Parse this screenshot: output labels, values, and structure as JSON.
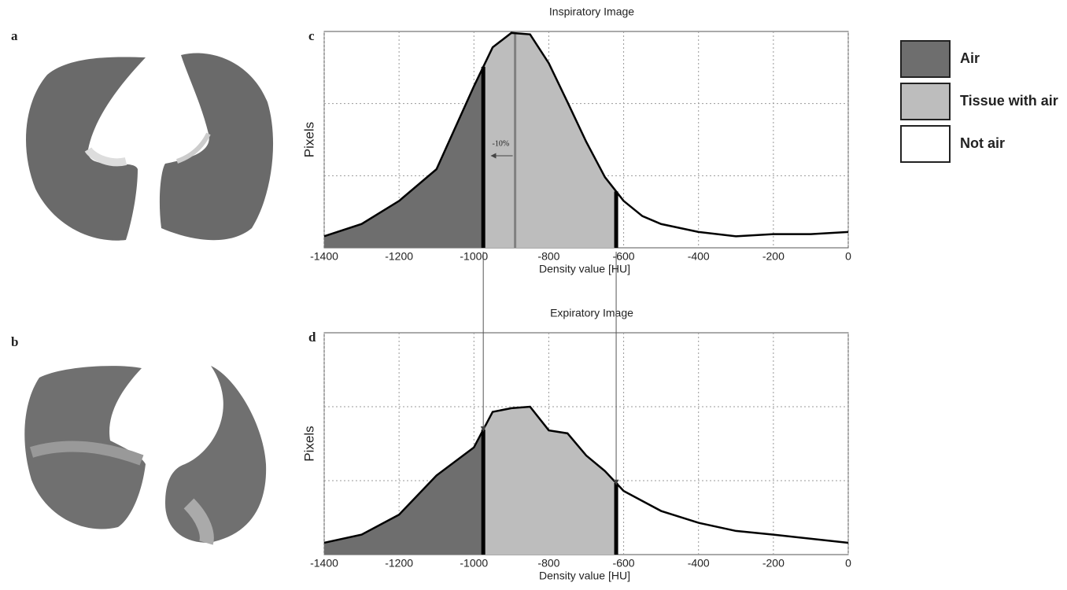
{
  "panels": [
    "a",
    "b"
  ],
  "legend": [
    {
      "label": "Air",
      "color": "#6e6e6e"
    },
    {
      "label": "Tissue with air",
      "color": "#bdbdbd"
    },
    {
      "label": "Not air",
      "color": "#ffffff"
    }
  ],
  "chart_data": [
    {
      "type": "area",
      "panel": "c",
      "title": "Inspiratory Image",
      "xlabel": "Density value [HU]",
      "ylabel": "Pixels",
      "x": [
        -1400,
        -1300,
        -1200,
        -1100,
        -1000,
        -950,
        -900,
        -850,
        -800,
        -750,
        -700,
        -650,
        -600,
        -550,
        -500,
        -400,
        -300,
        -200,
        -100,
        0
      ],
      "values": [
        0.16,
        0.33,
        0.65,
        1.09,
        2.24,
        2.78,
        2.98,
        2.96,
        2.56,
        2.02,
        1.47,
        0.98,
        0.65,
        0.44,
        0.33,
        0.22,
        0.16,
        0.19,
        0.19,
        0.22
      ],
      "xlim": [
        -1400,
        0
      ],
      "xticks": [
        -1400,
        -1200,
        -1000,
        -800,
        -600,
        -400,
        -200,
        0
      ],
      "ylim": [
        0,
        3
      ],
      "yticks": [
        1,
        2
      ],
      "grid": true,
      "thresholds": [
        -975,
        -620
      ],
      "reference_line": -890,
      "annotation": "-10%"
    },
    {
      "type": "area",
      "panel": "d",
      "title": "Expiratory Image",
      "xlabel": "Density value [HU]",
      "ylabel": "Pixels",
      "x": [
        -1400,
        -1300,
        -1200,
        -1100,
        -1000,
        -950,
        -900,
        -850,
        -800,
        -750,
        -700,
        -650,
        -600,
        -500,
        -400,
        -300,
        -200,
        0
      ],
      "values": [
        0.16,
        0.27,
        0.54,
        1.07,
        1.45,
        1.93,
        1.98,
        2.0,
        1.68,
        1.64,
        1.34,
        1.13,
        0.86,
        0.59,
        0.43,
        0.32,
        0.27,
        0.16
      ],
      "xlim": [
        -1400,
        0
      ],
      "xticks": [
        -1400,
        -1200,
        -1000,
        -800,
        -600,
        -400,
        -200,
        0
      ],
      "ylim": [
        0,
        3
      ],
      "yticks": [
        1,
        2
      ],
      "grid": true,
      "thresholds": [
        -975,
        -620
      ]
    }
  ]
}
